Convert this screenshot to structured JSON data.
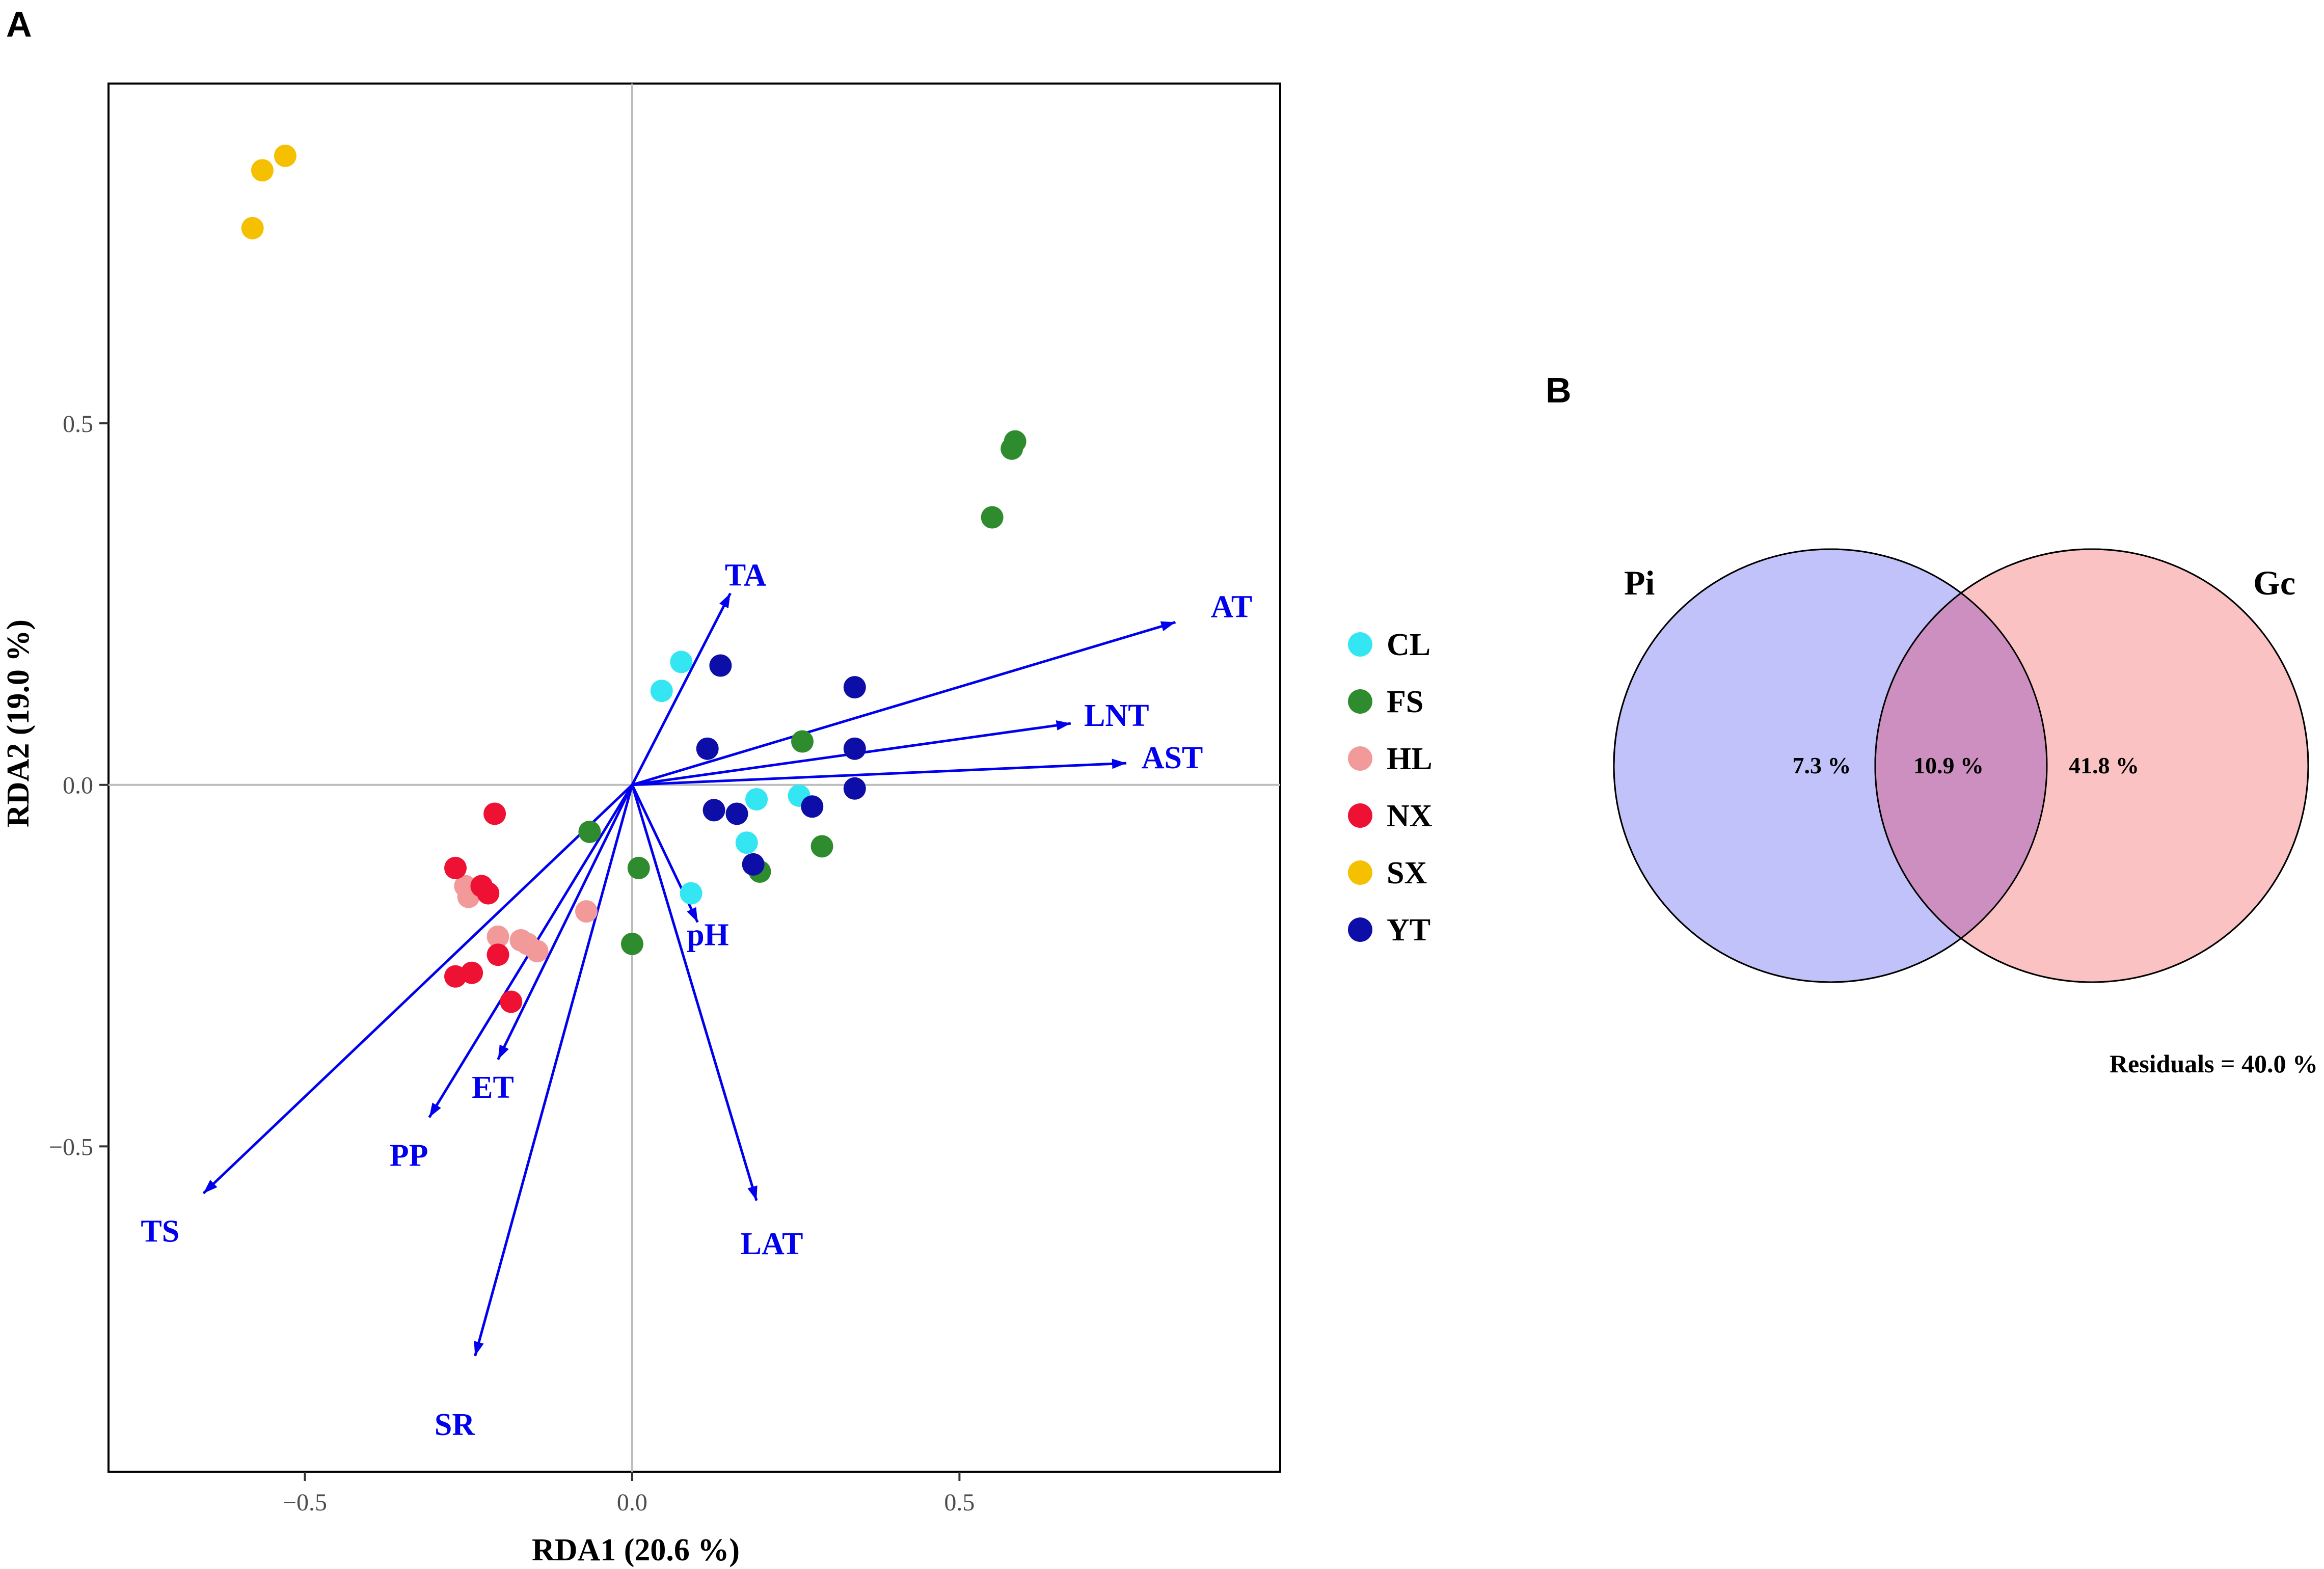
{
  "panels": {
    "a": "A",
    "b": "B"
  },
  "chart_data": [
    {
      "type": "scatter",
      "subtype": "rda-biplot",
      "xlabel": "RDA1 (20.6 %)",
      "ylabel": "RDA2 (19.0 %)",
      "xlim": [
        -0.8,
        0.99
      ],
      "ylim": [
        -0.95,
        0.97
      ],
      "xticks": [
        {
          "value": -0.5,
          "label": "−0.5"
        },
        {
          "value": 0.0,
          "label": "0.0"
        },
        {
          "value": 0.5,
          "label": "0.5"
        }
      ],
      "yticks": [
        {
          "value": 0.5,
          "label": "0.5"
        },
        {
          "value": 0.0,
          "label": "0.0"
        },
        {
          "value": -0.5,
          "label": "−0.5"
        }
      ],
      "legend_position": "right",
      "legend": [
        {
          "key": "CL",
          "label": "CL",
          "color": "#33e6f2"
        },
        {
          "key": "FS",
          "label": "FS",
          "color": "#2e8b2e"
        },
        {
          "key": "HL",
          "label": "HL",
          "color": "#f29a9a"
        },
        {
          "key": "NX",
          "label": "NX",
          "color": "#ee1133"
        },
        {
          "key": "SX",
          "label": "SX",
          "color": "#f5c000"
        },
        {
          "key": "YT",
          "label": "YT",
          "color": "#0d0da8"
        }
      ],
      "points": [
        {
          "group": "SX",
          "x": -0.53,
          "y": 0.87
        },
        {
          "group": "SX",
          "x": -0.565,
          "y": 0.85
        },
        {
          "group": "SX",
          "x": -0.58,
          "y": 0.77
        },
        {
          "group": "FS",
          "x": 0.585,
          "y": 0.475
        },
        {
          "group": "FS",
          "x": 0.58,
          "y": 0.465
        },
        {
          "group": "FS",
          "x": 0.55,
          "y": 0.37
        },
        {
          "group": "FS",
          "x": 0.26,
          "y": 0.06
        },
        {
          "group": "FS",
          "x": -0.065,
          "y": -0.065
        },
        {
          "group": "FS",
          "x": 0.01,
          "y": -0.115
        },
        {
          "group": "FS",
          "x": 0.195,
          "y": -0.12
        },
        {
          "group": "FS",
          "x": 0.29,
          "y": -0.085
        },
        {
          "group": "FS",
          "x": 0.0,
          "y": -0.22
        },
        {
          "group": "CL",
          "x": 0.075,
          "y": 0.17
        },
        {
          "group": "CL",
          "x": 0.045,
          "y": 0.13
        },
        {
          "group": "CL",
          "x": 0.19,
          "y": -0.02
        },
        {
          "group": "CL",
          "x": 0.255,
          "y": -0.015
        },
        {
          "group": "CL",
          "x": 0.175,
          "y": -0.08
        },
        {
          "group": "CL",
          "x": 0.09,
          "y": -0.15
        },
        {
          "group": "YT",
          "x": 0.135,
          "y": 0.165
        },
        {
          "group": "YT",
          "x": 0.34,
          "y": 0.135
        },
        {
          "group": "YT",
          "x": 0.115,
          "y": 0.05
        },
        {
          "group": "YT",
          "x": 0.34,
          "y": 0.05
        },
        {
          "group": "YT",
          "x": 0.34,
          "y": -0.005
        },
        {
          "group": "YT",
          "x": 0.125,
          "y": -0.035
        },
        {
          "group": "YT",
          "x": 0.16,
          "y": -0.04
        },
        {
          "group": "YT",
          "x": 0.275,
          "y": -0.03
        },
        {
          "group": "YT",
          "x": 0.185,
          "y": -0.11
        },
        {
          "group": "HL",
          "x": -0.255,
          "y": -0.14
        },
        {
          "group": "HL",
          "x": -0.25,
          "y": -0.155
        },
        {
          "group": "HL",
          "x": -0.07,
          "y": -0.175
        },
        {
          "group": "HL",
          "x": -0.205,
          "y": -0.21
        },
        {
          "group": "HL",
          "x": -0.17,
          "y": -0.215
        },
        {
          "group": "HL",
          "x": -0.16,
          "y": -0.22
        },
        {
          "group": "HL",
          "x": -0.145,
          "y": -0.23
        },
        {
          "group": "NX",
          "x": -0.21,
          "y": -0.04
        },
        {
          "group": "NX",
          "x": -0.27,
          "y": -0.115
        },
        {
          "group": "NX",
          "x": -0.23,
          "y": -0.14
        },
        {
          "group": "NX",
          "x": -0.22,
          "y": -0.15
        },
        {
          "group": "NX",
          "x": -0.205,
          "y": -0.235
        },
        {
          "group": "NX",
          "x": -0.245,
          "y": -0.26
        },
        {
          "group": "NX",
          "x": -0.27,
          "y": -0.265
        },
        {
          "group": "NX",
          "x": -0.185,
          "y": -0.3
        }
      ],
      "vectors": [
        {
          "label": "TA",
          "x": 0.15,
          "y": 0.265
        },
        {
          "label": "AT",
          "x": 0.83,
          "y": 0.225
        },
        {
          "label": "LNT",
          "x": 0.67,
          "y": 0.085
        },
        {
          "label": "AST",
          "x": 0.755,
          "y": 0.03
        },
        {
          "label": "pH",
          "x": 0.1,
          "y": -0.19
        },
        {
          "label": "ET",
          "x": -0.205,
          "y": -0.38
        },
        {
          "label": "PP",
          "x": -0.31,
          "y": -0.46
        },
        {
          "label": "TS",
          "x": -0.655,
          "y": -0.565
        },
        {
          "label": "LAT",
          "x": 0.19,
          "y": -0.575
        },
        {
          "label": "SR",
          "x": -0.24,
          "y": -0.79
        }
      ],
      "vector_color": "#0000ee"
    },
    {
      "type": "venn",
      "sets": [
        {
          "label": "Pi",
          "color": "#c2c2fa"
        },
        {
          "label": "Gc",
          "color": "#fac2c2"
        }
      ],
      "overlap_color": "#cc8fc0",
      "values": {
        "pi_only": "7.3 %",
        "both": "10.9 %",
        "gc_only": "41.8 %"
      },
      "residuals": "Residuals = 40.0 %"
    }
  ]
}
